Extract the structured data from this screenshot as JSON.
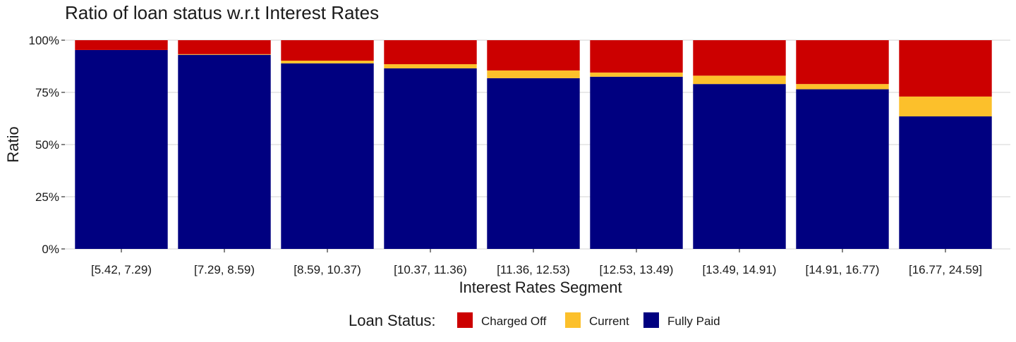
{
  "chart_data": {
    "type": "bar",
    "stacked": true,
    "normalized": true,
    "title": "Ratio of loan status w.r.t Interest Rates",
    "xlabel": "Interest Rates Segment",
    "ylabel": "Ratio",
    "ylim": [
      0,
      1
    ],
    "y_ticks": [
      0,
      0.25,
      0.5,
      0.75,
      1
    ],
    "y_tick_labels": [
      "0%",
      "25%",
      "50%",
      "75%",
      "100%"
    ],
    "grid": true,
    "legend_position": "bottom",
    "legend_title": "Loan Status:",
    "categories": [
      "[5.42, 7.29)",
      "[7.29, 8.59)",
      "[8.59, 10.37)",
      "[10.37, 11.36)",
      "[11.36, 12.53)",
      "[12.53, 13.49)",
      "[13.49, 14.91)",
      "[14.91, 16.77)",
      "[16.77, 24.59]"
    ],
    "stack_order": [
      "Fully Paid",
      "Current",
      "Charged Off"
    ],
    "series": [
      {
        "name": "Charged Off",
        "color": "#cc0000",
        "values": [
          0.047,
          0.067,
          0.098,
          0.115,
          0.145,
          0.155,
          0.17,
          0.21,
          0.27
        ]
      },
      {
        "name": "Current",
        "color": "#fcc02b",
        "values": [
          0.0,
          0.003,
          0.013,
          0.02,
          0.037,
          0.02,
          0.04,
          0.025,
          0.095
        ]
      },
      {
        "name": "Fully Paid",
        "color": "#000080",
        "values": [
          0.953,
          0.93,
          0.889,
          0.865,
          0.818,
          0.825,
          0.79,
          0.765,
          0.635
        ]
      }
    ]
  }
}
